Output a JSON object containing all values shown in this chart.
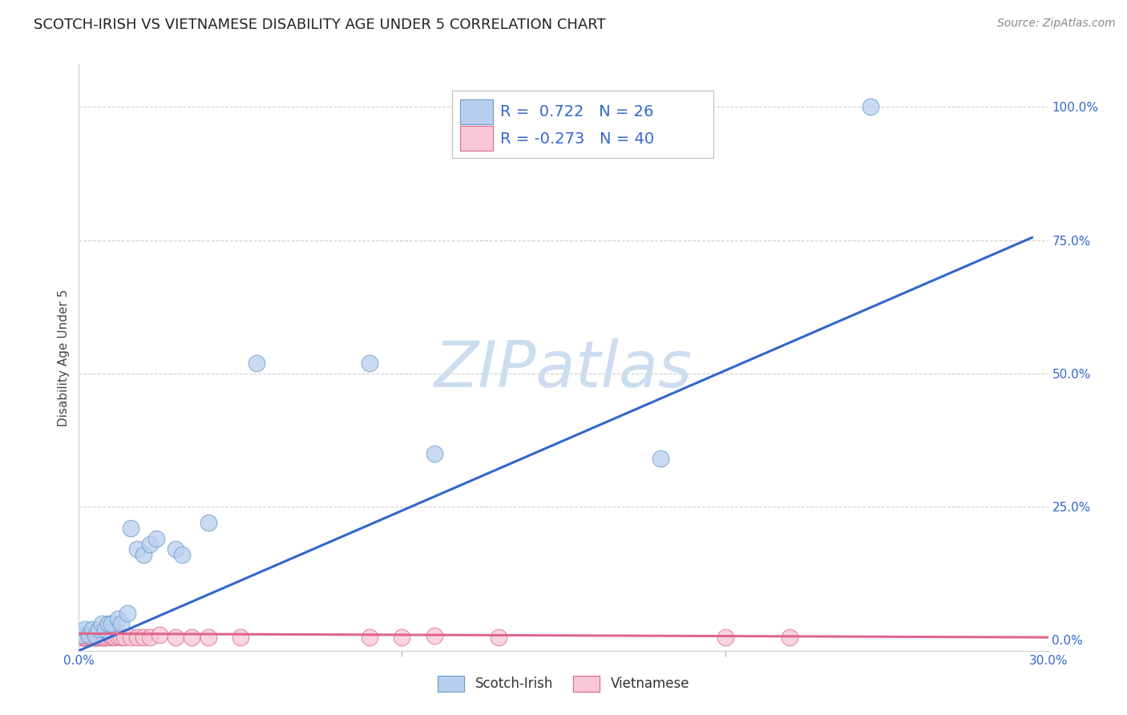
{
  "title": "SCOTCH-IRISH VS VIETNAMESE DISABILITY AGE UNDER 5 CORRELATION CHART",
  "source": "Source: ZipAtlas.com",
  "ylabel": "Disability Age Under 5",
  "xlim": [
    0.0,
    0.3
  ],
  "ylim": [
    -0.02,
    1.08
  ],
  "right_ytick_vals": [
    0.0,
    0.25,
    0.5,
    0.75,
    1.0
  ],
  "right_yticklabels": [
    "0.0%",
    "25.0%",
    "50.0%",
    "75.0%",
    "100.0%"
  ],
  "grid_color": "#cccccc",
  "background_color": "#ffffff",
  "watermark": "ZIPatlas",
  "watermark_color": "#ccddf0",
  "scotch_irish": {
    "label": "Scotch-Irish",
    "R": 0.722,
    "N": 26,
    "scatter_facecolor": "#b8d0ee",
    "scatter_edgecolor": "#6699cc",
    "line_color": "#3366cc",
    "x": [
      0.001,
      0.002,
      0.003,
      0.004,
      0.005,
      0.006,
      0.007,
      0.008,
      0.009,
      0.01,
      0.012,
      0.013,
      0.015,
      0.016,
      0.018,
      0.02,
      0.022,
      0.024,
      0.03,
      0.032,
      0.04,
      0.055,
      0.09,
      0.11,
      0.18,
      0.245
    ],
    "y": [
      0.01,
      0.02,
      0.01,
      0.02,
      0.01,
      0.02,
      0.03,
      0.02,
      0.03,
      0.03,
      0.04,
      0.03,
      0.05,
      0.21,
      0.17,
      0.16,
      0.18,
      0.19,
      0.17,
      0.16,
      0.22,
      0.52,
      0.52,
      0.35,
      0.34,
      1.0
    ],
    "trend_x": [
      0.0,
      0.295
    ],
    "trend_y": [
      -0.02,
      0.755
    ]
  },
  "vietnamese": {
    "label": "Vietnamese",
    "R": -0.273,
    "N": 40,
    "scatter_facecolor": "#f8c8d8",
    "scatter_edgecolor": "#dd6688",
    "line_color": "#dd6688",
    "x": [
      0.001,
      0.001,
      0.002,
      0.002,
      0.002,
      0.003,
      0.003,
      0.004,
      0.004,
      0.005,
      0.005,
      0.005,
      0.006,
      0.006,
      0.007,
      0.007,
      0.008,
      0.008,
      0.009,
      0.01,
      0.01,
      0.011,
      0.012,
      0.013,
      0.014,
      0.016,
      0.018,
      0.02,
      0.022,
      0.025,
      0.03,
      0.035,
      0.04,
      0.05,
      0.09,
      0.1,
      0.11,
      0.13,
      0.2,
      0.22
    ],
    "y": [
      0.005,
      0.005,
      0.005,
      0.005,
      0.005,
      0.005,
      0.005,
      0.005,
      0.005,
      0.005,
      0.005,
      0.005,
      0.005,
      0.005,
      0.005,
      0.005,
      0.005,
      0.005,
      0.005,
      0.005,
      0.008,
      0.005,
      0.007,
      0.005,
      0.005,
      0.005,
      0.005,
      0.005,
      0.005,
      0.01,
      0.005,
      0.005,
      0.005,
      0.005,
      0.005,
      0.005,
      0.008,
      0.005,
      0.005,
      0.005
    ],
    "trend_x": [
      0.0,
      0.3
    ],
    "trend_y": [
      0.012,
      0.005
    ]
  },
  "legend_R1": "R =  0.722",
  "legend_N1": "N = 26",
  "legend_R2": "R = -0.273",
  "legend_N2": "N = 40",
  "title_fontsize": 13,
  "axis_label_fontsize": 11,
  "tick_fontsize": 11,
  "legend_fontsize": 14,
  "source_fontsize": 10
}
